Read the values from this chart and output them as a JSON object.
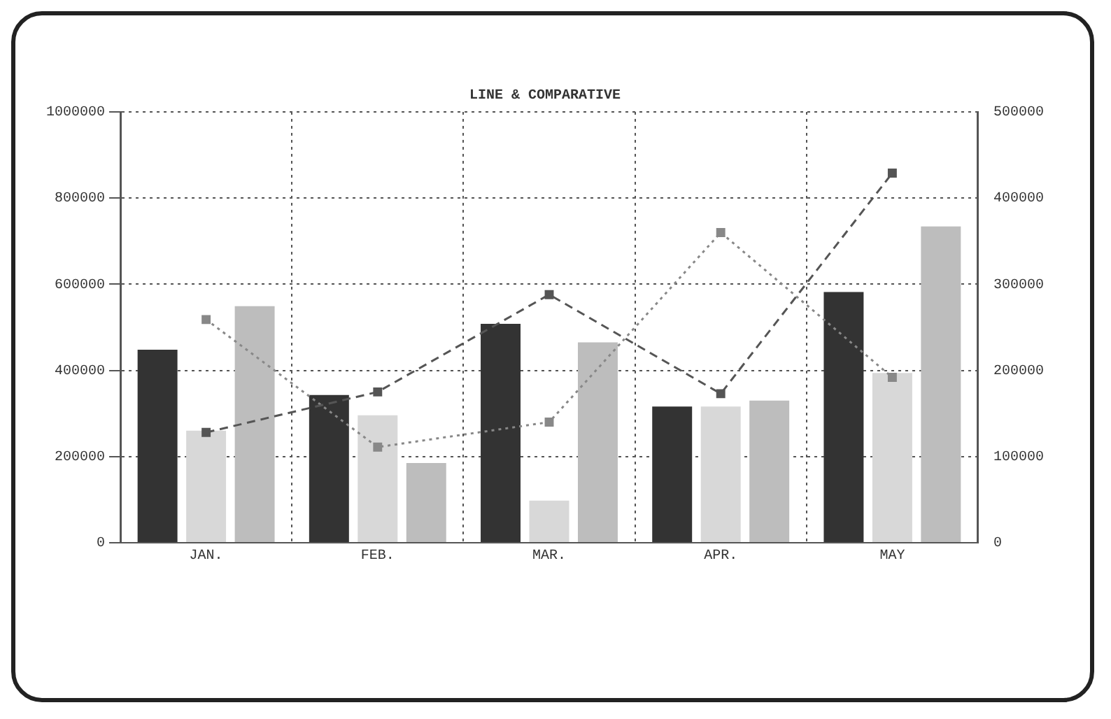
{
  "chart_data": {
    "type": "bar",
    "title": "LINE & COMPARATIVE",
    "categories": [
      "JAN.",
      "FEB.",
      "MAR.",
      "APR.",
      "MAY"
    ],
    "series": [
      {
        "color": "#333333",
        "values": [
          448000,
          343000,
          508000,
          316000,
          582000
        ]
      },
      {
        "color": "#d8d8d8",
        "values": [
          260000,
          296000,
          98000,
          316000,
          394000
        ]
      },
      {
        "color": "#bdbdbd",
        "values": [
          549000,
          185000,
          465000,
          330000,
          734000
        ]
      },
      {
        "type": "line",
        "axis": "y2",
        "color": "#555555",
        "line_style": "dashed",
        "values": [
          128000,
          175000,
          288000,
          173000,
          429000
        ]
      },
      {
        "type": "line",
        "axis": "y2",
        "color": "#888888",
        "line_style": "dotted",
        "values": [
          259000,
          111000,
          140000,
          360000,
          192000
        ]
      }
    ],
    "ylim": [
      0,
      1000000
    ],
    "yticks": [
      0,
      200000,
      400000,
      600000,
      800000,
      1000000
    ],
    "y2lim": [
      0,
      500000
    ],
    "y2ticks": [
      0,
      100000,
      200000,
      300000,
      400000,
      500000
    ],
    "grid": true,
    "legend": false,
    "marker": "square"
  }
}
